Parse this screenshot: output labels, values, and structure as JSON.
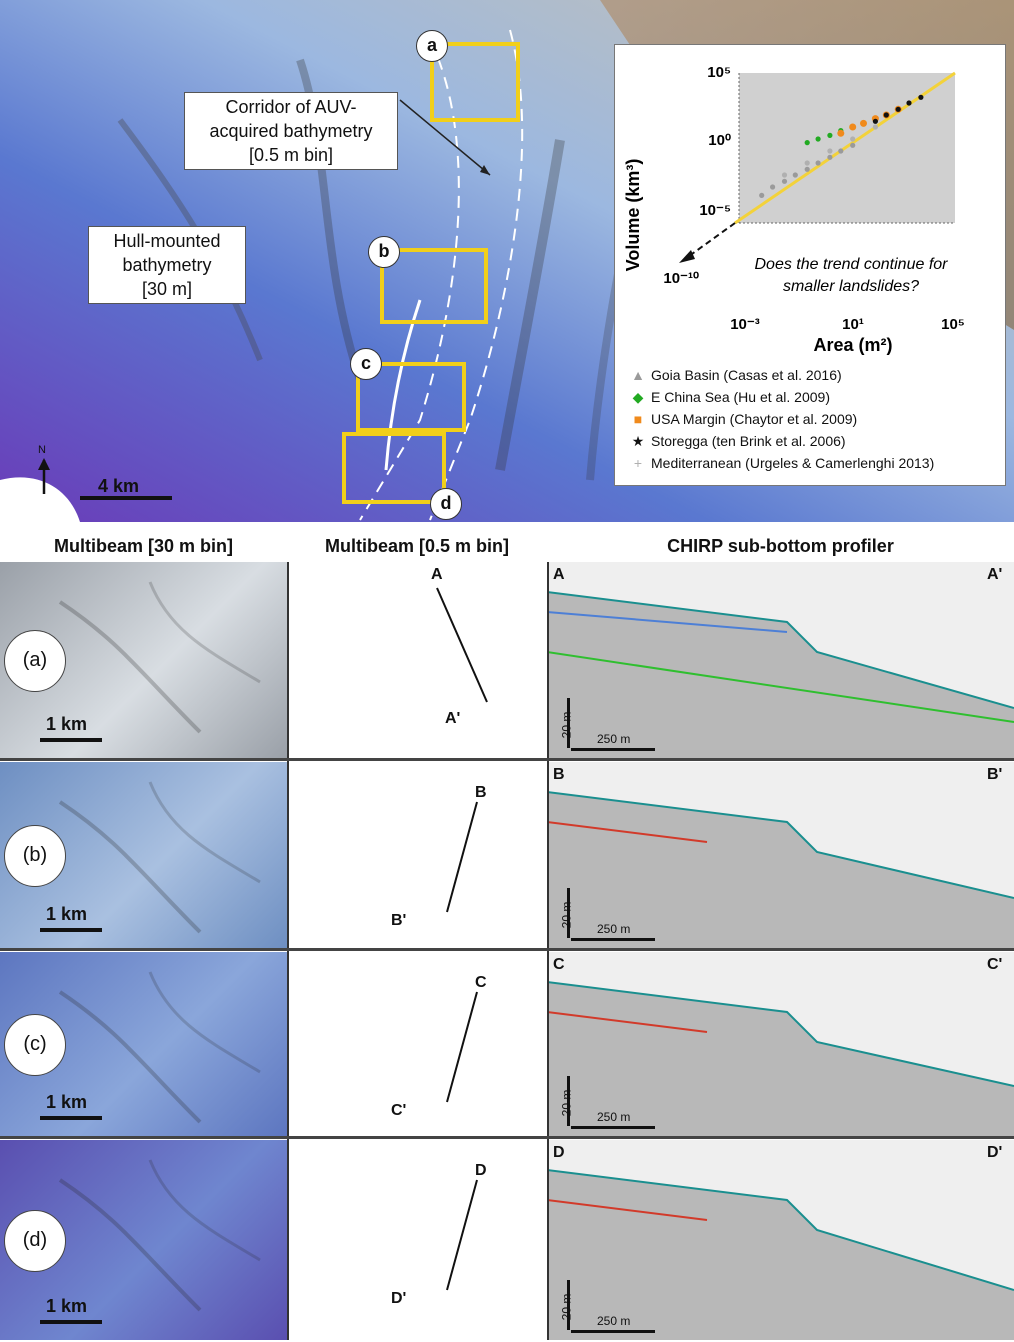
{
  "overview": {
    "corridor_label": [
      "Corridor of AUV-",
      "acquired bathymetry",
      "[0.5 m bin]"
    ],
    "hull_label": [
      "Hull-mounted",
      "bathymetry",
      "[30 m]"
    ],
    "box_labels": [
      "a",
      "b",
      "c",
      "d"
    ],
    "north": "N",
    "scale": "4 km"
  },
  "inset": {
    "ylabel": "Volume (km³)",
    "xlabel": "Area (m²)",
    "y_ticks": [
      "10⁵",
      "10⁰",
      "10⁻⁵",
      "10⁻¹⁰"
    ],
    "x_ticks": [
      "10⁻³",
      "10¹",
      "10⁵"
    ],
    "question": [
      "Does the trend continue for",
      "smaller landslides?"
    ],
    "legend": [
      {
        "name": "Goia Basin (Casas et al. 2016)",
        "marker": "▲",
        "color": "#9a9a9a"
      },
      {
        "name": "E China Sea (Hu et al. 2009)",
        "marker": "◆",
        "color": "#22aa22"
      },
      {
        "name": "USA Margin (Chaytor et al. 2009)",
        "marker": "■",
        "color": "#f08a1c"
      },
      {
        "name": "Storegga (ten Brink et al. 2006)",
        "marker": "★",
        "color": "#111111"
      },
      {
        "name": "Mediterranean (Urgeles & Camerlenghi 2013)",
        "marker": "+",
        "color": "#b0b0b0"
      }
    ]
  },
  "chart_data": {
    "type": "scatter",
    "xlabel": "Area (m²)",
    "ylabel": "Volume (km³)",
    "x_scale": "log",
    "y_scale": "log",
    "x_ticks": [
      0.001,
      10,
      100000
    ],
    "y_ticks": [
      100000,
      1,
      1e-05,
      1e-10
    ],
    "series": [
      {
        "name": "Goia Basin (Casas et al. 2016)",
        "color": "#9a9a9a",
        "points": [
          [
            0.001,
            2e-05
          ],
          [
            0.003,
            0.0001
          ],
          [
            0.01,
            0.0003
          ],
          [
            0.03,
            0.001
          ],
          [
            0.1,
            0.003
          ],
          [
            0.3,
            0.01
          ],
          [
            1,
            0.03
          ],
          [
            3,
            0.1
          ],
          [
            10,
            0.3
          ]
        ]
      },
      {
        "name": "E China Sea (Hu et al. 2009)",
        "color": "#22aa22",
        "points": [
          [
            0.1,
            0.5
          ],
          [
            0.3,
            1
          ],
          [
            1,
            2
          ],
          [
            3,
            5
          ],
          [
            10,
            10
          ],
          [
            30,
            20
          ]
        ]
      },
      {
        "name": "USA Margin (Chaytor et al. 2009)",
        "color": "#f08a1c",
        "points": [
          [
            3,
            3
          ],
          [
            10,
            10
          ],
          [
            30,
            20
          ],
          [
            100,
            50
          ],
          [
            300,
            100
          ],
          [
            1000,
            300
          ]
        ]
      },
      {
        "name": "Storegga (ten Brink et al. 2006)",
        "color": "#111111",
        "points": [
          [
            100,
            30
          ],
          [
            300,
            100
          ],
          [
            1000,
            300
          ],
          [
            3000,
            1000
          ],
          [
            10000,
            3000
          ]
        ]
      },
      {
        "name": "Mediterranean (Urgeles & Camerlenghi 2013)",
        "color": "#b0b0b0",
        "points": [
          [
            0.01,
            0.001
          ],
          [
            0.1,
            0.01
          ],
          [
            1,
            0.1
          ],
          [
            10,
            1
          ],
          [
            100,
            10
          ]
        ]
      }
    ]
  },
  "columns": {
    "c1": "Multibeam [30 m bin]",
    "c2": "Multibeam [0.5 m bin]",
    "c3": "CHIRP sub-bottom profiler"
  },
  "rows": [
    {
      "label": "(a)",
      "scale1": "1 km",
      "start": "A",
      "end": "A'",
      "vscale": "20 m",
      "hscale": "250 m"
    },
    {
      "label": "(b)",
      "scale1": "1 km",
      "start": "B",
      "end": "B'",
      "vscale": "20 m",
      "hscale": "250 m"
    },
    {
      "label": "(c)",
      "scale1": "1 km",
      "start": "C",
      "end": "C'",
      "vscale": "20 m",
      "hscale": "250 m"
    },
    {
      "label": "(d)",
      "scale1": "1 km",
      "start": "D",
      "end": "D'",
      "vscale": "20 m",
      "hscale": "250 m"
    }
  ]
}
